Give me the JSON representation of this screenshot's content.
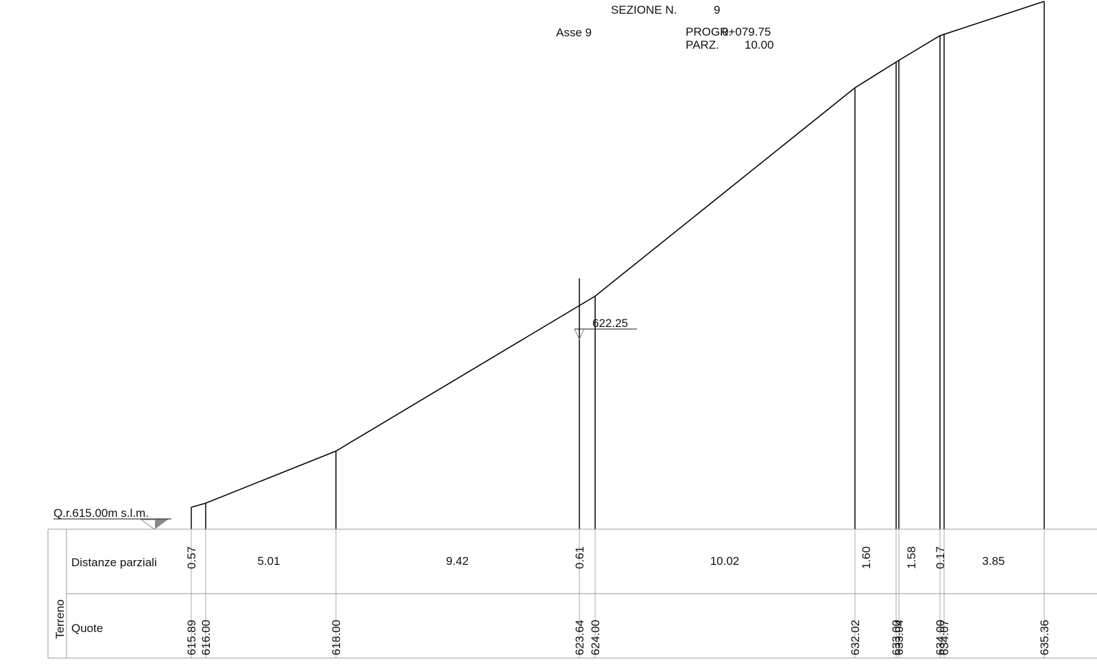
{
  "header": {
    "section_label": "SEZIONE N.",
    "section_number": "9",
    "axis_label": "Asse 9",
    "progr_label": "PROGR.",
    "progr_value": "0+079.75",
    "parz_label": "PARZ.",
    "parz_value": "10.00"
  },
  "reference": {
    "label": "Q.r.615.00m s.l.m."
  },
  "water_level": {
    "label": "622.25"
  },
  "table": {
    "group_label": "Terreno",
    "rows": [
      {
        "label": "Distanze parziali"
      },
      {
        "label": "Quote"
      }
    ]
  },
  "profile": {
    "points": [
      {
        "elev_label": "615.89"
      },
      {
        "elev_label": "616.00"
      },
      {
        "elev_label": "618.00"
      },
      {
        "elev_label": "623.64"
      },
      {
        "elev_label": "624.00"
      },
      {
        "elev_label": "632.02"
      },
      {
        "elev_label": "633.00"
      },
      {
        "elev_label": "633.04"
      },
      {
        "elev_label": "634.00"
      },
      {
        "elev_label": "634.07"
      },
      {
        "elev_label": "635.36"
      }
    ],
    "partial_distances": [
      {
        "value": "0.57"
      },
      {
        "value": "5.01"
      },
      {
        "value": "9.42"
      },
      {
        "value": "0.61"
      },
      {
        "value": "10.02"
      },
      {
        "value": "1.60"
      },
      {
        "value": "1.58"
      },
      {
        "value": "0.17"
      },
      {
        "value": "3.85"
      }
    ]
  }
}
